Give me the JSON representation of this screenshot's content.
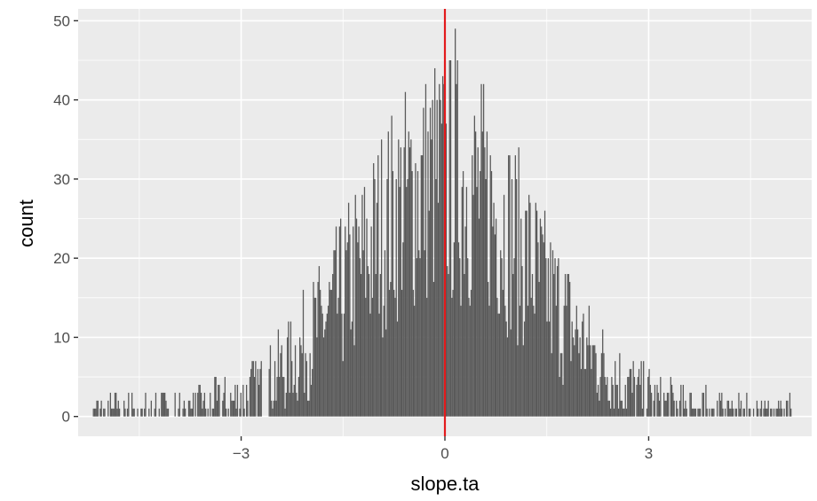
{
  "chart_data": {
    "type": "bar",
    "subtype": "histogram",
    "xlabel": "slope.ta",
    "ylabel": "count",
    "xlim": [
      -5.4,
      5.4
    ],
    "ylim": [
      -2.5,
      51.5
    ],
    "x_ticks": [
      -3,
      0,
      3
    ],
    "x_tick_labels": [
      "−3",
      "0",
      "3"
    ],
    "y_ticks": [
      0,
      10,
      20,
      30,
      40,
      50
    ],
    "y_tick_labels": [
      "0",
      "10",
      "20",
      "30",
      "40",
      "50"
    ],
    "grid": true,
    "bin_width": 0.0167,
    "data_range": [
      -5.2,
      5.1
    ],
    "approx_peak_count": 49,
    "approx_peak_x": 0.15,
    "bar_color": "#595959",
    "panel_background": "#ebebeb",
    "reference_line": {
      "x": 0,
      "color": "#e31a1c"
    }
  }
}
